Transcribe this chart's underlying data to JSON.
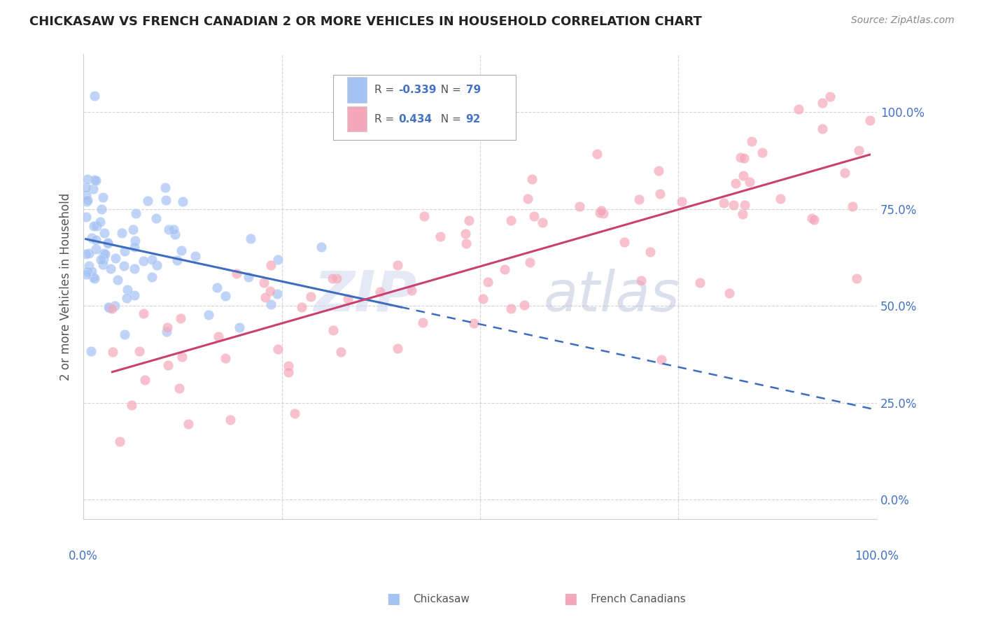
{
  "title": "CHICKASAW VS FRENCH CANADIAN 2 OR MORE VEHICLES IN HOUSEHOLD CORRELATION CHART",
  "source": "Source: ZipAtlas.com",
  "ylabel": "2 or more Vehicles in Household",
  "ytick_labels": [
    "0.0%",
    "25.0%",
    "50.0%",
    "75.0%",
    "100.0%"
  ],
  "ytick_values": [
    0,
    25,
    50,
    75,
    100
  ],
  "xlim": [
    0,
    100
  ],
  "ylim": [
    -5,
    115
  ],
  "blue_color": "#a4c2f4",
  "pink_color": "#f4a7b9",
  "blue_line_color": "#3d6cc0",
  "pink_line_color": "#c94070",
  "axis_color": "#4472c4",
  "grid_color": "#d0d0d0",
  "legend_r1_val": "-0.339",
  "legend_n1_val": "79",
  "legend_r2_val": "0.434",
  "legend_n2_val": "92",
  "watermark_zip": "ZIP",
  "watermark_atlas": "atlas",
  "bottom_label1": "Chickasaw",
  "bottom_label2": "French Canadians",
  "chick_seed": 42,
  "french_seed": 99,
  "n_chick": 79,
  "n_french": 92,
  "chick_x_scale": 7.0,
  "chick_x_max": 30,
  "chick_y_intercept": 68,
  "chick_y_slope": -0.6,
  "chick_y_noise": 11,
  "french_x_min": 3,
  "french_x_max": 100,
  "french_y_intercept": 28,
  "french_y_slope": 0.62,
  "french_y_noise": 12
}
